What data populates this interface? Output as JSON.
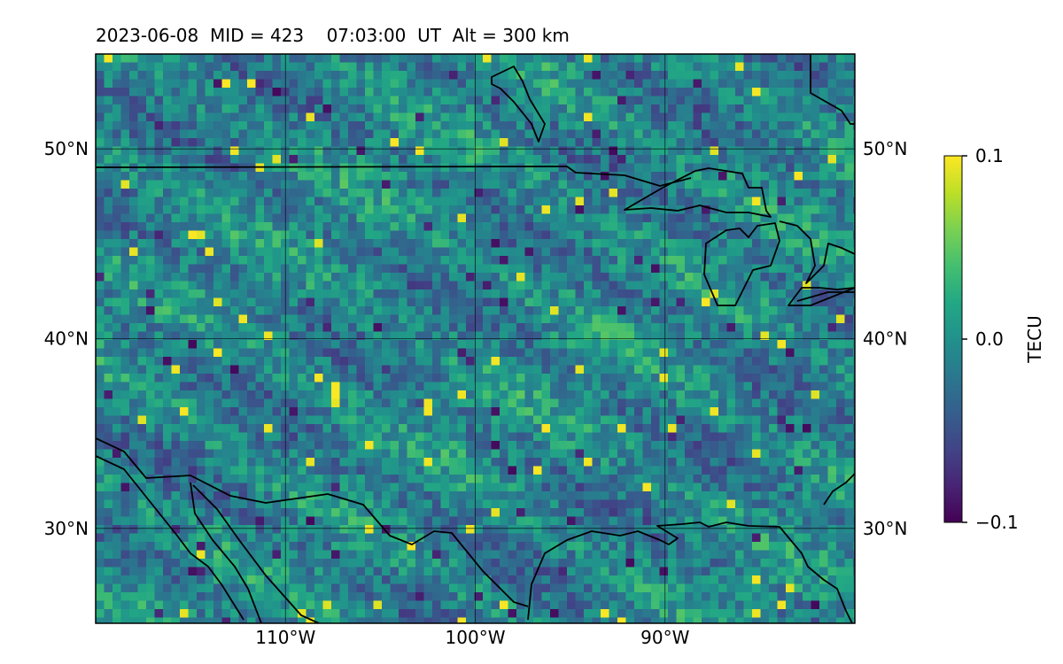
{
  "title": "2023-06-08  MID = 423    07:03:00  UT  Alt = 300 km",
  "map": {
    "lon_range": [
      -120,
      -80
    ],
    "lat_range": [
      25,
      55
    ],
    "lon_ticks": [
      {
        "value": -110,
        "label": "110°W"
      },
      {
        "value": -100,
        "label": "100°W"
      },
      {
        "value": -90,
        "label": "90°W"
      }
    ],
    "lat_ticks": [
      {
        "value": 50,
        "label": "50°N"
      },
      {
        "value": 40,
        "label": "40°N"
      },
      {
        "value": 30,
        "label": "30°N"
      }
    ],
    "gridlines": true,
    "coastline_color": "#000000",
    "field_variable": "TECU"
  },
  "colorbar": {
    "label": "TECU",
    "min": -0.1,
    "max": 0.1,
    "colormap": "viridis",
    "ticks": [
      {
        "value": 0.1,
        "label": "0.1"
      },
      {
        "value": 0.0,
        "label": "0.0"
      },
      {
        "value": -0.1,
        "label": "−0.1"
      }
    ]
  }
}
